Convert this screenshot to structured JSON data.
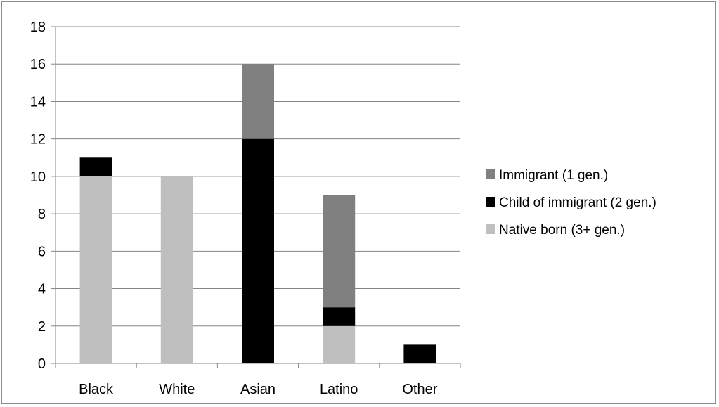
{
  "chart_data": {
    "type": "bar",
    "stacked": true,
    "categories": [
      "Black",
      "White",
      "Asian",
      "Latino",
      "Other"
    ],
    "series": [
      {
        "name": "Native born (3+ gen.)",
        "color": "#bfbfbf",
        "values": [
          10,
          10,
          0,
          2,
          0
        ]
      },
      {
        "name": "Child of immigrant (2 gen.)",
        "color": "#000000",
        "values": [
          1,
          0,
          12,
          1,
          1
        ]
      },
      {
        "name": "Immigrant (1 gen.)",
        "color": "#808080",
        "values": [
          0,
          0,
          4,
          6,
          0
        ]
      }
    ],
    "title": "",
    "xlabel": "",
    "ylabel": "",
    "ylim": [
      0,
      18
    ],
    "yticks": [
      0,
      2,
      4,
      6,
      8,
      10,
      12,
      14,
      16,
      18
    ],
    "grid": true,
    "legend_position": "right",
    "legend_order": [
      "Immigrant (1 gen.)",
      "Child of immigrant (2 gen.)",
      "Native born (3+ gen.)"
    ]
  }
}
